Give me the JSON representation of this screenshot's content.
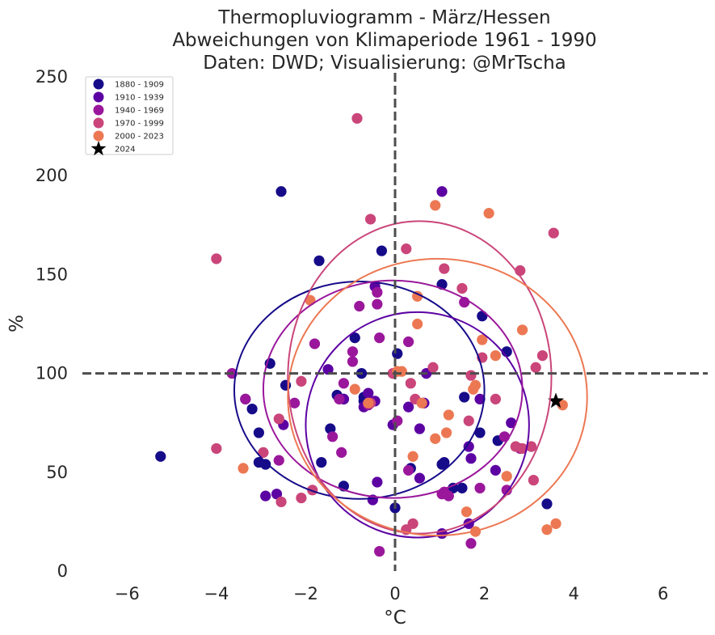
{
  "chart_data": {
    "type": "scatter",
    "title_lines": [
      "Thermopluviogramm - März/Hessen",
      "Abweichungen von Klimaperiode 1961 - 1990",
      "Daten: DWD; Visualisierung: @MrTscha"
    ],
    "xlabel": "°C",
    "ylabel": "%",
    "xlim": [
      -7,
      7
    ],
    "ylim": [
      0,
      250
    ],
    "xticks": [
      -6,
      -4,
      -2,
      0,
      2,
      4,
      6
    ],
    "xtick_labels": [
      "−6",
      "−4",
      "−2",
      "0",
      "2",
      "4",
      "6"
    ],
    "yticks": [
      0,
      50,
      100,
      150,
      200,
      250
    ],
    "ytick_labels": [
      "0",
      "50",
      "100",
      "150",
      "200",
      "250"
    ],
    "grid": false,
    "legend_position": "top-left",
    "reference_lines": {
      "x": 0,
      "y": 100
    },
    "series": [
      {
        "name": "1880 - 1909",
        "color": "#160b89",
        "points": [
          [
            -2.55,
            192
          ],
          [
            -1.7,
            157
          ],
          [
            -0.3,
            162
          ],
          [
            1.05,
            145
          ],
          [
            1.95,
            129
          ],
          [
            -2.8,
            105
          ],
          [
            -0.9,
            118
          ],
          [
            0.05,
            110
          ],
          [
            -0.75,
            100
          ],
          [
            -2.45,
            94
          ],
          [
            -3.35,
            87
          ],
          [
            -3.2,
            82
          ],
          [
            -1.3,
            89
          ],
          [
            -1.15,
            87
          ],
          [
            -0.7,
            86
          ],
          [
            -0.7,
            88
          ],
          [
            -3.05,
            70
          ],
          [
            -1.45,
            72
          ],
          [
            -3.05,
            55
          ],
          [
            -2.9,
            54
          ],
          [
            -1.65,
            55
          ],
          [
            -1.15,
            43
          ],
          [
            0.0,
            32
          ],
          [
            1.05,
            54
          ],
          [
            1.1,
            55
          ],
          [
            1.3,
            42
          ],
          [
            1.5,
            42
          ],
          [
            1.55,
            88
          ],
          [
            1.9,
            70
          ],
          [
            2.3,
            66
          ],
          [
            2.5,
            111
          ],
          [
            -5.25,
            58
          ],
          [
            3.4,
            34
          ],
          [
            0.35,
            52
          ]
        ]
      },
      {
        "name": "1910 - 1939",
        "color": "#5c02a3",
        "points": [
          [
            1.05,
            192
          ],
          [
            -0.45,
            144
          ],
          [
            0.7,
            100
          ],
          [
            -1.5,
            102
          ],
          [
            -0.45,
            86
          ],
          [
            -0.7,
            83
          ],
          [
            0.3,
            83
          ],
          [
            0.55,
            72
          ],
          [
            0.65,
            85
          ],
          [
            -0.5,
            36
          ],
          [
            -0.4,
            45
          ],
          [
            0.55,
            47
          ],
          [
            1.65,
            63
          ],
          [
            1.7,
            57
          ],
          [
            1.65,
            24
          ],
          [
            2.25,
            51
          ],
          [
            2.6,
            75
          ],
          [
            1.9,
            87
          ],
          [
            1.05,
            19
          ],
          [
            -1.15,
            87
          ],
          [
            -2.9,
            38
          ],
          [
            -2.65,
            39
          ],
          [
            -0.05,
            74
          ],
          [
            -2.5,
            74
          ],
          [
            -0.6,
            90
          ]
        ]
      },
      {
        "name": "1940 - 1969",
        "color": "#9a179b",
        "points": [
          [
            -0.4,
            135
          ],
          [
            -0.4,
            141
          ],
          [
            -1.8,
            115
          ],
          [
            -0.95,
            111
          ],
          [
            -0.95,
            106
          ],
          [
            -0.8,
            134
          ],
          [
            -0.35,
            118
          ],
          [
            0.3,
            116
          ],
          [
            -1.15,
            95
          ],
          [
            -1.25,
            87
          ],
          [
            -0.6,
            84
          ],
          [
            -1.4,
            68
          ],
          [
            -2.25,
            85
          ],
          [
            -3.65,
            100
          ],
          [
            -3.35,
            87
          ],
          [
            -2.6,
            56
          ],
          [
            -0.35,
            10
          ],
          [
            -1.2,
            60
          ],
          [
            0.05,
            76
          ],
          [
            0.3,
            51
          ],
          [
            1.05,
            39
          ],
          [
            1.2,
            38
          ],
          [
            1.55,
            136
          ],
          [
            1.7,
            14
          ],
          [
            1.9,
            42
          ],
          [
            2.45,
            68
          ],
          [
            2.5,
            41
          ],
          [
            2.8,
            62
          ],
          [
            1.1,
            40
          ]
        ]
      },
      {
        "name": "1970 - 1999",
        "color": "#ca457a",
        "points": [
          [
            -0.85,
            229
          ],
          [
            -0.55,
            178
          ],
          [
            0.25,
            163
          ],
          [
            1.1,
            153
          ],
          [
            1.5,
            143
          ],
          [
            2.8,
            152
          ],
          [
            3.55,
            171
          ],
          [
            -4.0,
            158
          ],
          [
            3.3,
            109
          ],
          [
            3.15,
            103
          ],
          [
            1.95,
            108
          ],
          [
            1.7,
            99
          ],
          [
            0.85,
            103
          ],
          [
            0.35,
            95
          ],
          [
            -2.1,
            96
          ],
          [
            -2.6,
            77
          ],
          [
            -2.95,
            60
          ],
          [
            -2.55,
            35
          ],
          [
            -2.1,
            37
          ],
          [
            -1.85,
            41
          ],
          [
            -0.55,
            85
          ],
          [
            -0.05,
            100
          ],
          [
            1.65,
            76
          ],
          [
            2.25,
            87
          ],
          [
            2.7,
            63
          ],
          [
            3.05,
            63
          ],
          [
            3.1,
            46
          ],
          [
            0.4,
            24
          ],
          [
            0.25,
            21
          ],
          [
            -4.0,
            62
          ],
          [
            2.85,
            62
          ],
          [
            0.45,
            87
          ]
        ]
      },
      {
        "name": "2000 - 2023",
        "color": "#ec7853",
        "points": [
          [
            0.9,
            185
          ],
          [
            2.1,
            181
          ],
          [
            -1.9,
            137
          ],
          [
            0.5,
            139
          ],
          [
            0.5,
            125
          ],
          [
            2.85,
            122
          ],
          [
            1.95,
            117
          ],
          [
            2.25,
            109
          ],
          [
            0.15,
            101
          ],
          [
            0.05,
            101
          ],
          [
            1.8,
            94
          ],
          [
            1.75,
            92
          ],
          [
            0.6,
            85
          ],
          [
            1.2,
            79
          ],
          [
            0.9,
            67
          ],
          [
            1.15,
            70
          ],
          [
            0.4,
            58
          ],
          [
            2.5,
            48
          ],
          [
            -0.9,
            92
          ],
          [
            -3.4,
            52
          ],
          [
            1.6,
            30
          ],
          [
            1.8,
            20
          ],
          [
            3.4,
            21
          ],
          [
            3.6,
            24
          ],
          [
            3.75,
            84
          ],
          [
            -0.6,
            85
          ]
        ]
      },
      {
        "name": "2024",
        "color": "#000000",
        "marker": "star",
        "points": [
          [
            3.6,
            86
          ]
        ]
      }
    ],
    "ellipses": [
      {
        "series": "1880 - 1909",
        "color": "#160b89",
        "center": [
          -0.8,
          91.5
        ],
        "radius": [
          2.8,
          55
        ]
      },
      {
        "series": "1910 - 1939",
        "color": "#5c02a3",
        "center": [
          0.5,
          74
        ],
        "radius": [
          2.5,
          57
        ]
      },
      {
        "series": "1940 - 1969",
        "color": "#9a179b",
        "center": [
          -0.05,
          92
        ],
        "radius": [
          2.9,
          55
        ]
      },
      {
        "series": "1970 - 1999",
        "color": "#ca457a",
        "center": [
          0.55,
          98
        ],
        "radius": [
          2.95,
          79
        ]
      },
      {
        "series": "2000 - 2023",
        "color": "#ec7853",
        "center": [
          0.95,
          88
        ],
        "radius": [
          3.35,
          70
        ]
      }
    ]
  }
}
